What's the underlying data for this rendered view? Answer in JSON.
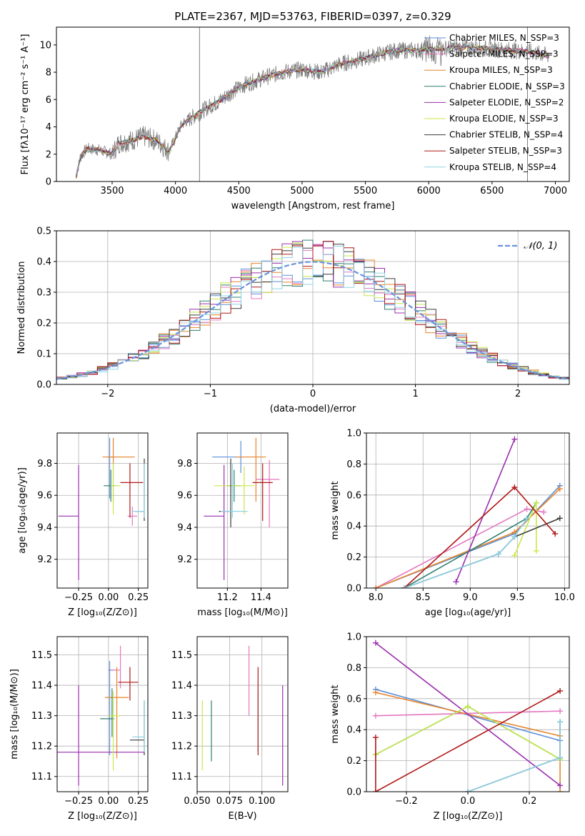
{
  "figure_title": "PLATE=2367, MJD=53763, FIBERID=0397, z=0.329",
  "colors": {
    "chabrier_miles": "#5b8fd8",
    "salpeter_miles": "#e377c2",
    "kroupa_miles": "#e8842a",
    "chabrier_elodie": "#2f7f6f",
    "salpeter_elodie": "#9b2fb0",
    "kroupa_elodie": "#c7e84a",
    "chabrier_stelib": "#3a3a3a",
    "salpeter_stelib": "#b01818",
    "kroupa_stelib": "#8fd3e6",
    "data": "#808080",
    "normal": "#6a93d8"
  },
  "chart_data": [
    {
      "id": "spectrum",
      "type": "line",
      "xlabel": "wavelength [Angstrom, rest frame]",
      "ylabel": "Flux [fλ10⁻¹⁷ erg cm⁻² s⁻¹ A⁻¹]",
      "xlim": [
        3060,
        7110
      ],
      "ylim": [
        0,
        11.3
      ],
      "xticks": [
        3500,
        4000,
        4500,
        5000,
        5500,
        6000,
        6500,
        7000
      ],
      "yticks": [
        0,
        2,
        4,
        6,
        8,
        10
      ],
      "legend": "top-right",
      "series": [
        {
          "name": "Chabrier MILES, N_SSP=3",
          "color": "#5b8fd8"
        },
        {
          "name": "Salpeter MILES, N_SSP=3",
          "color": "#e377c2"
        },
        {
          "name": "Kroupa MILES, N_SSP=3",
          "color": "#e8842a"
        },
        {
          "name": "Chabrier ELODIE, N_SSP=3",
          "color": "#2f7f6f"
        },
        {
          "name": "Salpeter ELODIE, N_SSP=2",
          "color": "#9b2fb0"
        },
        {
          "name": "Kroupa ELODIE, N_SSP=3",
          "color": "#c7e84a"
        },
        {
          "name": "Chabrier STELIB, N_SSP=4",
          "color": "#3a3a3a"
        },
        {
          "name": "Salpeter STELIB, N_SSP=3",
          "color": "#b01818"
        },
        {
          "name": "Kroupa STELIB, N_SSP=4",
          "color": "#8fd3e6"
        }
      ],
      "data_envelope": {
        "x": [
          3210,
          3250,
          3300,
          3400,
          3500,
          3550,
          3650,
          3750,
          3850,
          3950,
          4050,
          4150,
          4250,
          4350,
          4450,
          4550,
          4700,
          4850,
          5000,
          5150,
          5300,
          5450,
          5600,
          5750,
          5900,
          6050,
          6200,
          6350,
          6500,
          6650,
          6800,
          6950
        ],
        "y": [
          0.2,
          1.8,
          2.4,
          2.3,
          2.0,
          2.8,
          3.0,
          3.3,
          3.0,
          2.2,
          4.2,
          4.8,
          5.4,
          5.9,
          6.6,
          7.1,
          7.6,
          8.0,
          8.2,
          8.0,
          8.6,
          8.9,
          9.3,
          9.6,
          9.6,
          9.7,
          9.8,
          9.8,
          9.7,
          9.6,
          9.5,
          9.2
        ]
      }
    },
    {
      "id": "residuals",
      "type": "histogram",
      "xlabel": "(data-model)/error",
      "ylabel": "Normed distribution",
      "xlim": [
        -2.5,
        2.5
      ],
      "ylim": [
        0,
        0.5
      ],
      "xticks": [
        -2,
        -1,
        0,
        1,
        2
      ],
      "yticks": [
        0.0,
        0.1,
        0.2,
        0.3,
        0.4,
        0.5
      ],
      "legend_label": "𝒩(0, 1)",
      "bin_width": 0.1
    },
    {
      "id": "age_vs_Z",
      "type": "errorbar",
      "xlabel": "Z [log₁₀(Z/Z⊙)]",
      "ylabel": "age  [log₁₀(age/yr)]",
      "xlim": [
        -0.43,
        0.33
      ],
      "ylim": [
        9.02,
        9.99
      ],
      "xticks": [
        -0.25,
        0.0,
        0.25
      ],
      "yticks": [
        9.2,
        9.4,
        9.6,
        9.8
      ],
      "points": [
        {
          "c": "chabrier_miles",
          "x": 0.01,
          "y": 9.84,
          "xerr": [
            0.01,
            0.05
          ],
          "yerr": [
            0.26,
            0.12
          ]
        },
        {
          "c": "salpeter_miles",
          "x": 0.2,
          "y": 9.47,
          "xerr": [
            0.04,
            0.04
          ],
          "yerr": [
            0.06,
            0.06
          ]
        },
        {
          "c": "kroupa_miles",
          "x": 0.04,
          "y": 9.84,
          "xerr": [
            0.09,
            0.18
          ],
          "yerr": [
            0.28,
            0.12
          ]
        },
        {
          "c": "chabrier_elodie",
          "x": 0.02,
          "y": 9.66,
          "xerr": [
            0.06,
            0.04
          ],
          "yerr": [
            0.1,
            0.1
          ]
        },
        {
          "c": "salpeter_elodie",
          "x": -0.25,
          "y": 9.47,
          "xerr": [
            0.17,
            0.0
          ],
          "yerr": [
            0.4,
            0.32
          ]
        },
        {
          "c": "kroupa_elodie",
          "x": 0.04,
          "y": 9.66,
          "xerr": [
            0.02,
            0.06
          ],
          "yerr": [
            0.18,
            0.14
          ]
        },
        {
          "c": "chabrier_stelib",
          "x": 0.3,
          "y": 9.5,
          "xerr": [
            0.07,
            0.0
          ],
          "yerr": [
            0.06,
            0.33
          ]
        },
        {
          "c": "salpeter_stelib",
          "x": 0.18,
          "y": 9.68,
          "xerr": [
            0.08,
            0.11
          ],
          "yerr": [
            0.22,
            0.12
          ]
        },
        {
          "c": "kroupa_stelib",
          "x": 0.3,
          "y": 9.5,
          "xerr": [
            0.1,
            0.0
          ],
          "yerr": [
            0.04,
            0.3
          ]
        }
      ]
    },
    {
      "id": "age_vs_mass",
      "type": "errorbar",
      "xlabel": "mass [log₁₀(M/M⊙)]",
      "ylabel": "",
      "xlim": [
        11.02,
        11.56
      ],
      "ylim": [
        9.02,
        9.99
      ],
      "xticks": [
        11.2,
        11.4
      ],
      "yticks": [
        9.2,
        9.4,
        9.6,
        9.8
      ],
      "points": [
        {
          "c": "chabrier_miles",
          "x": 11.28,
          "y": 9.84,
          "xerr": [
            0.17,
            0.0
          ],
          "yerr": [
            0.1,
            0.1
          ]
        },
        {
          "c": "salpeter_miles",
          "x": 11.45,
          "y": 9.7,
          "xerr": [
            0.08,
            0.06
          ],
          "yerr": [
            0.3,
            0.12
          ]
        },
        {
          "c": "kroupa_miles",
          "x": 11.37,
          "y": 9.84,
          "xerr": [
            0.12,
            0.06
          ],
          "yerr": [
            0.28,
            0.12
          ]
        },
        {
          "c": "chabrier_elodie",
          "x": 11.24,
          "y": 9.66,
          "xerr": [
            0.04,
            0.04
          ],
          "yerr": [
            0.1,
            0.1
          ]
        },
        {
          "c": "salpeter_elodie",
          "x": 11.18,
          "y": 9.47,
          "xerr": [
            0.12,
            0.0
          ],
          "yerr": [
            0.4,
            0.32
          ]
        },
        {
          "c": "kroupa_elodie",
          "x": 11.3,
          "y": 9.66,
          "xerr": [
            0.18,
            0.06
          ],
          "yerr": [
            0.18,
            0.12
          ]
        },
        {
          "c": "chabrier_stelib",
          "x": 11.22,
          "y": 9.5,
          "xerr": [
            0.07,
            0.0
          ],
          "yerr": [
            0.1,
            0.33
          ]
        },
        {
          "c": "salpeter_stelib",
          "x": 11.41,
          "y": 9.68,
          "xerr": [
            0.06,
            0.06
          ],
          "yerr": [
            0.24,
            0.12
          ]
        },
        {
          "c": "kroupa_stelib",
          "x": 11.23,
          "y": 9.5,
          "xerr": [
            0.07,
            0.09
          ],
          "yerr": [
            0.04,
            0.3
          ]
        }
      ]
    },
    {
      "id": "weight_vs_age",
      "type": "line",
      "xlabel": "age  [log₁₀(age/yr)]",
      "ylabel": "mass weight",
      "xlim": [
        7.9,
        10.05
      ],
      "ylim": [
        0,
        1.0
      ],
      "xticks": [
        8.0,
        8.5,
        9.0,
        9.5,
        10.0
      ],
      "yticks": [
        0.0,
        0.2,
        0.4,
        0.6,
        0.8,
        1.0
      ],
      "series": [
        {
          "c": "chabrier_miles",
          "x": [
            8.0,
            9.47,
            9.95
          ],
          "y": [
            0.0,
            0.35,
            0.66
          ]
        },
        {
          "c": "salpeter_miles",
          "x": [
            8.0,
            9.6,
            9.78
          ],
          "y": [
            0.0,
            0.51,
            0.49
          ]
        },
        {
          "c": "kroupa_miles",
          "x": [
            8.0,
            9.47,
            9.95
          ],
          "y": [
            0.0,
            0.36,
            0.64
          ]
        },
        {
          "c": "chabrier_elodie",
          "x": [
            8.3,
            9.6,
            9.7
          ],
          "y": [
            0.0,
            0.45,
            0.55
          ]
        },
        {
          "c": "salpeter_elodie",
          "x": [
            8.85,
            9.47
          ],
          "y": [
            0.04,
            0.96
          ]
        },
        {
          "c": "kroupa_elodie",
          "x": [
            9.47,
            9.7,
            9.7
          ],
          "y": [
            0.21,
            0.55,
            0.24
          ]
        },
        {
          "c": "chabrier_stelib",
          "x": [
            8.3,
            9.3,
            9.47,
            9.95
          ],
          "y": [
            0.0,
            0.22,
            0.33,
            0.45
          ]
        },
        {
          "c": "salpeter_stelib",
          "x": [
            8.3,
            9.47,
            9.9
          ],
          "y": [
            0.0,
            0.65,
            0.35
          ]
        },
        {
          "c": "kroupa_stelib",
          "x": [
            8.3,
            9.3,
            9.47,
            9.6
          ],
          "y": [
            0.0,
            0.22,
            0.33,
            0.45
          ]
        }
      ]
    },
    {
      "id": "mass_vs_Z",
      "type": "errorbar",
      "xlabel": "Z [log₁₀(Z/Z⊙)]",
      "ylabel": "mass [log₁₀(M/M⊙)]",
      "xlim": [
        -0.43,
        0.33
      ],
      "ylim": [
        11.05,
        11.56
      ],
      "xticks": [
        -0.25,
        0.0,
        0.25
      ],
      "yticks": [
        11.1,
        11.2,
        11.3,
        11.4,
        11.5
      ],
      "points": [
        {
          "c": "chabrier_miles",
          "x": 0.01,
          "y": 11.45,
          "xerr": [
            0.01,
            0.04
          ],
          "yerr": [
            0.28,
            0.03
          ]
        },
        {
          "c": "salpeter_miles",
          "x": 0.1,
          "y": 11.45,
          "xerr": [
            0.08,
            0.0
          ],
          "yerr": [
            0.06,
            0.08
          ]
        },
        {
          "c": "kroupa_miles",
          "x": 0.07,
          "y": 11.36,
          "xerr": [
            0.1,
            0.1
          ],
          "yerr": [
            0.2,
            0.1
          ]
        },
        {
          "c": "chabrier_elodie",
          "x": 0.03,
          "y": 11.29,
          "xerr": [
            0.1,
            0.02
          ],
          "yerr": [
            0.06,
            0.1
          ]
        },
        {
          "c": "salpeter_elodie",
          "x": -0.25,
          "y": 11.18,
          "xerr": [
            0.18,
            0.55
          ],
          "yerr": [
            0.11,
            0.22
          ]
        },
        {
          "c": "kroupa_elodie",
          "x": 0.04,
          "y": 11.3,
          "xerr": [
            0.04,
            0.06
          ],
          "yerr": [
            0.18,
            0.08
          ]
        },
        {
          "c": "chabrier_stelib",
          "x": 0.3,
          "y": 11.22,
          "xerr": [
            0.12,
            0.0
          ],
          "yerr": [
            0.05,
            0.13
          ]
        },
        {
          "c": "salpeter_stelib",
          "x": 0.18,
          "y": 11.41,
          "xerr": [
            0.1,
            0.07
          ],
          "yerr": [
            0.06,
            0.05
          ]
        },
        {
          "c": "kroupa_stelib",
          "x": 0.3,
          "y": 11.23,
          "xerr": [
            0.1,
            0.0
          ],
          "yerr": [
            0.05,
            0.12
          ]
        }
      ]
    },
    {
      "id": "mass_vs_ebv",
      "type": "errorbar",
      "xlabel": "E(B-V)",
      "ylabel": "",
      "xlim": [
        0.05,
        0.12
      ],
      "ylim": [
        11.05,
        11.56
      ],
      "xticks": [
        0.05,
        0.075,
        0.1
      ],
      "yticks": [
        11.1,
        11.2,
        11.3,
        11.4,
        11.5
      ],
      "points": [
        {
          "c": "salpeter_miles",
          "x": 0.09,
          "y": 11.42,
          "xerr": [
            0,
            0
          ],
          "yerr": [
            0.12,
            0.11
          ]
        },
        {
          "c": "kroupa_elodie",
          "x": 0.054,
          "y": 11.24,
          "xerr": [
            0,
            0
          ],
          "yerr": [
            0.12,
            0.11
          ]
        },
        {
          "c": "chabrier_elodie",
          "x": 0.061,
          "y": 11.25,
          "xerr": [
            0,
            0
          ],
          "yerr": [
            0.1,
            0.1
          ]
        },
        {
          "c": "kroupa_stelib",
          "x": 0.097,
          "y": 11.28,
          "xerr": [
            0,
            0
          ],
          "yerr": [
            0.1,
            0.1
          ]
        },
        {
          "c": "salpeter_stelib",
          "x": 0.097,
          "y": 11.37,
          "xerr": [
            0,
            0
          ],
          "yerr": [
            0.2,
            0.09
          ]
        },
        {
          "c": "salpeter_elodie",
          "x": 0.116,
          "y": 11.24,
          "xerr": [
            0,
            0
          ],
          "yerr": [
            0.17,
            0.16
          ]
        }
      ]
    },
    {
      "id": "weight_vs_Z",
      "type": "line",
      "xlabel": "Z [log₁₀(Z/Z⊙)]",
      "ylabel": "mass weight",
      "xlim": [
        -0.33,
        0.33
      ],
      "ylim": [
        0,
        1.0
      ],
      "xticks": [
        -0.2,
        0.0,
        0.2
      ],
      "yticks": [
        0.0,
        0.2,
        0.4,
        0.6,
        0.8,
        1.0
      ],
      "series": [
        {
          "c": "chabrier_miles",
          "x": [
            -0.3,
            0.3
          ],
          "y": [
            0.66,
            0.33
          ]
        },
        {
          "c": "salpeter_miles",
          "x": [
            -0.3,
            0.3
          ],
          "y": [
            0.49,
            0.52
          ]
        },
        {
          "c": "kroupa_miles",
          "x": [
            -0.3,
            0.3,
            0.3
          ],
          "y": [
            0.64,
            0.36,
            0.0
          ]
        },
        {
          "c": "chabrier_elodie",
          "x": [
            -0.3,
            0.0,
            0.3
          ],
          "y": [
            0.24,
            0.55,
            0.21
          ]
        },
        {
          "c": "salpeter_elodie",
          "x": [
            -0.3,
            0.3
          ],
          "y": [
            0.96,
            0.04
          ]
        },
        {
          "c": "kroupa_elodie",
          "x": [
            -0.3,
            0.0,
            0.3
          ],
          "y": [
            0.24,
            0.55,
            0.21
          ]
        },
        {
          "c": "chabrier_stelib",
          "x": [
            0.0,
            0.3,
            0.3
          ],
          "y": [
            0.0,
            0.22,
            0.45
          ]
        },
        {
          "c": "salpeter_stelib",
          "x": [
            -0.3,
            -0.3,
            0.3
          ],
          "y": [
            0.35,
            0.0,
            0.65
          ]
        },
        {
          "c": "kroupa_stelib",
          "x": [
            0.0,
            0.3,
            0.3
          ],
          "y": [
            0.0,
            0.22,
            0.45
          ]
        }
      ]
    }
  ]
}
